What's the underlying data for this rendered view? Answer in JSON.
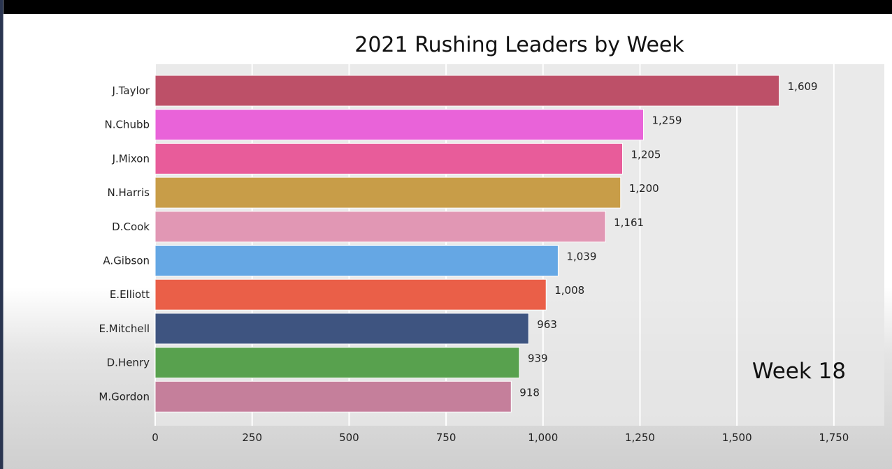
{
  "chart_data": {
    "type": "bar",
    "orientation": "horizontal",
    "title": "2021 Rushing Leaders by Week",
    "annotation": "Week 18",
    "categories": [
      "J.Taylor",
      "N.Chubb",
      "J.Mixon",
      "N.Harris",
      "D.Cook",
      "A.Gibson",
      "E.Elliott",
      "E.Mitchell",
      "D.Henry",
      "M.Gordon"
    ],
    "values": [
      1609,
      1259,
      1205,
      1200,
      1161,
      1039,
      1008,
      963,
      939,
      918
    ],
    "value_labels": [
      "1,609",
      "1,259",
      "1,205",
      "1,200",
      "1,161",
      "1,039",
      "1,008",
      "963",
      "939",
      "918"
    ],
    "colors": [
      "#bd5068",
      "#e963d9",
      "#e85c9a",
      "#c89d48",
      "#e197b4",
      "#65a7e4",
      "#ea5f48",
      "#3e5480",
      "#58a14e",
      "#c57f9b"
    ],
    "xticks": [
      0,
      250,
      500,
      750,
      1000,
      1250,
      1500,
      1750
    ],
    "xtick_labels": [
      "0",
      "250",
      "500",
      "750",
      "1,000",
      "1,250",
      "1,500",
      "1,750"
    ],
    "xlim": [
      0,
      1880
    ],
    "grid": true,
    "xlabel": "",
    "ylabel": ""
  }
}
